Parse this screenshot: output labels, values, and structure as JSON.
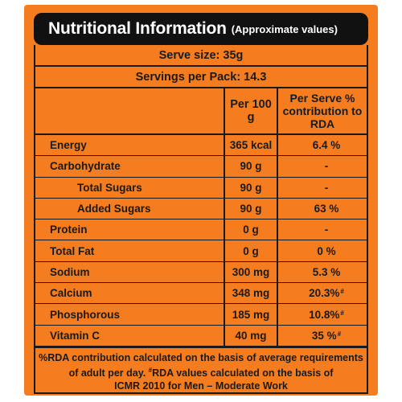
{
  "header": {
    "title": "Nutritional Information",
    "subtitle": "(Approximate values)"
  },
  "serve_size": "Serve size: 35g",
  "servings_per_pack": "Servings per Pack: 14.3",
  "columns": {
    "per_100g": "Per 100 g",
    "per_serve": "Per Serve % contribution to RDA"
  },
  "rows": [
    {
      "name": "Energy",
      "per_100g": "365 kcal",
      "rda": "6.4 %",
      "mark": ""
    },
    {
      "name": "Carbohydrate",
      "per_100g": "90 g",
      "rda": "-",
      "mark": ""
    },
    {
      "name": "Total Sugars",
      "per_100g": "90 g",
      "rda": "-",
      "mark": ""
    },
    {
      "name": "Added Sugars",
      "per_100g": "90 g",
      "rda": "63 %",
      "mark": ""
    },
    {
      "name": "Protein",
      "per_100g": "0 g",
      "rda": "-",
      "mark": ""
    },
    {
      "name": "Total Fat",
      "per_100g": "0 g",
      "rda": "0 %",
      "mark": ""
    },
    {
      "name": "Sodium",
      "per_100g": "300 mg",
      "rda": "5.3 %",
      "mark": ""
    },
    {
      "name": "Calcium",
      "per_100g": "348 mg",
      "rda": "20.3%",
      "mark": "#"
    },
    {
      "name": "Phosphorous",
      "per_100g": "185 mg",
      "rda": "10.8%",
      "mark": "#"
    },
    {
      "name": "Vitamin C",
      "per_100g": "40 mg",
      "rda": "35 %",
      "mark": "#"
    }
  ],
  "footnote": {
    "line1": "%RDA contribution calculated on the basis of average requirements",
    "line2a": "of adult per day. ",
    "line2_mark": "#",
    "line2b": "RDA values calculated on the basis of",
    "line3": "ICMR 2010 for Men – Moderate Work"
  },
  "colors": {
    "panel": "#f57c1f",
    "title_bar": "#111111",
    "title_text": "#ffffff",
    "lines": "#1a1a1a"
  }
}
